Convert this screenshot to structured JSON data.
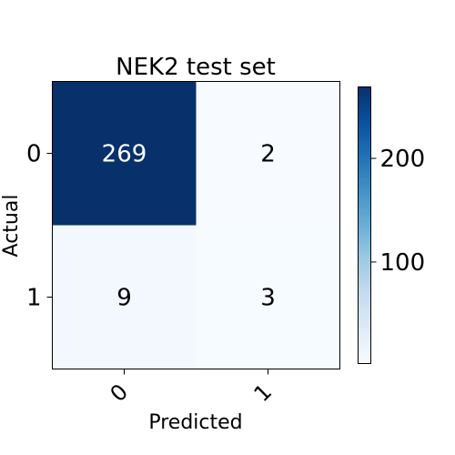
{
  "chart_data": {
    "type": "heatmap",
    "title": "NEK2 test set",
    "xlabel": "Predicted",
    "ylabel": "Actual",
    "x_categories": [
      "0",
      "1"
    ],
    "y_categories": [
      "0",
      "1"
    ],
    "values": [
      [
        269,
        2
      ],
      [
        9,
        3
      ]
    ],
    "colormap": "Blues",
    "colorbar": {
      "ticks": [
        100,
        200
      ],
      "tick_labels": [
        "100",
        "200"
      ],
      "range": [
        2,
        269
      ]
    },
    "grid": false
  }
}
